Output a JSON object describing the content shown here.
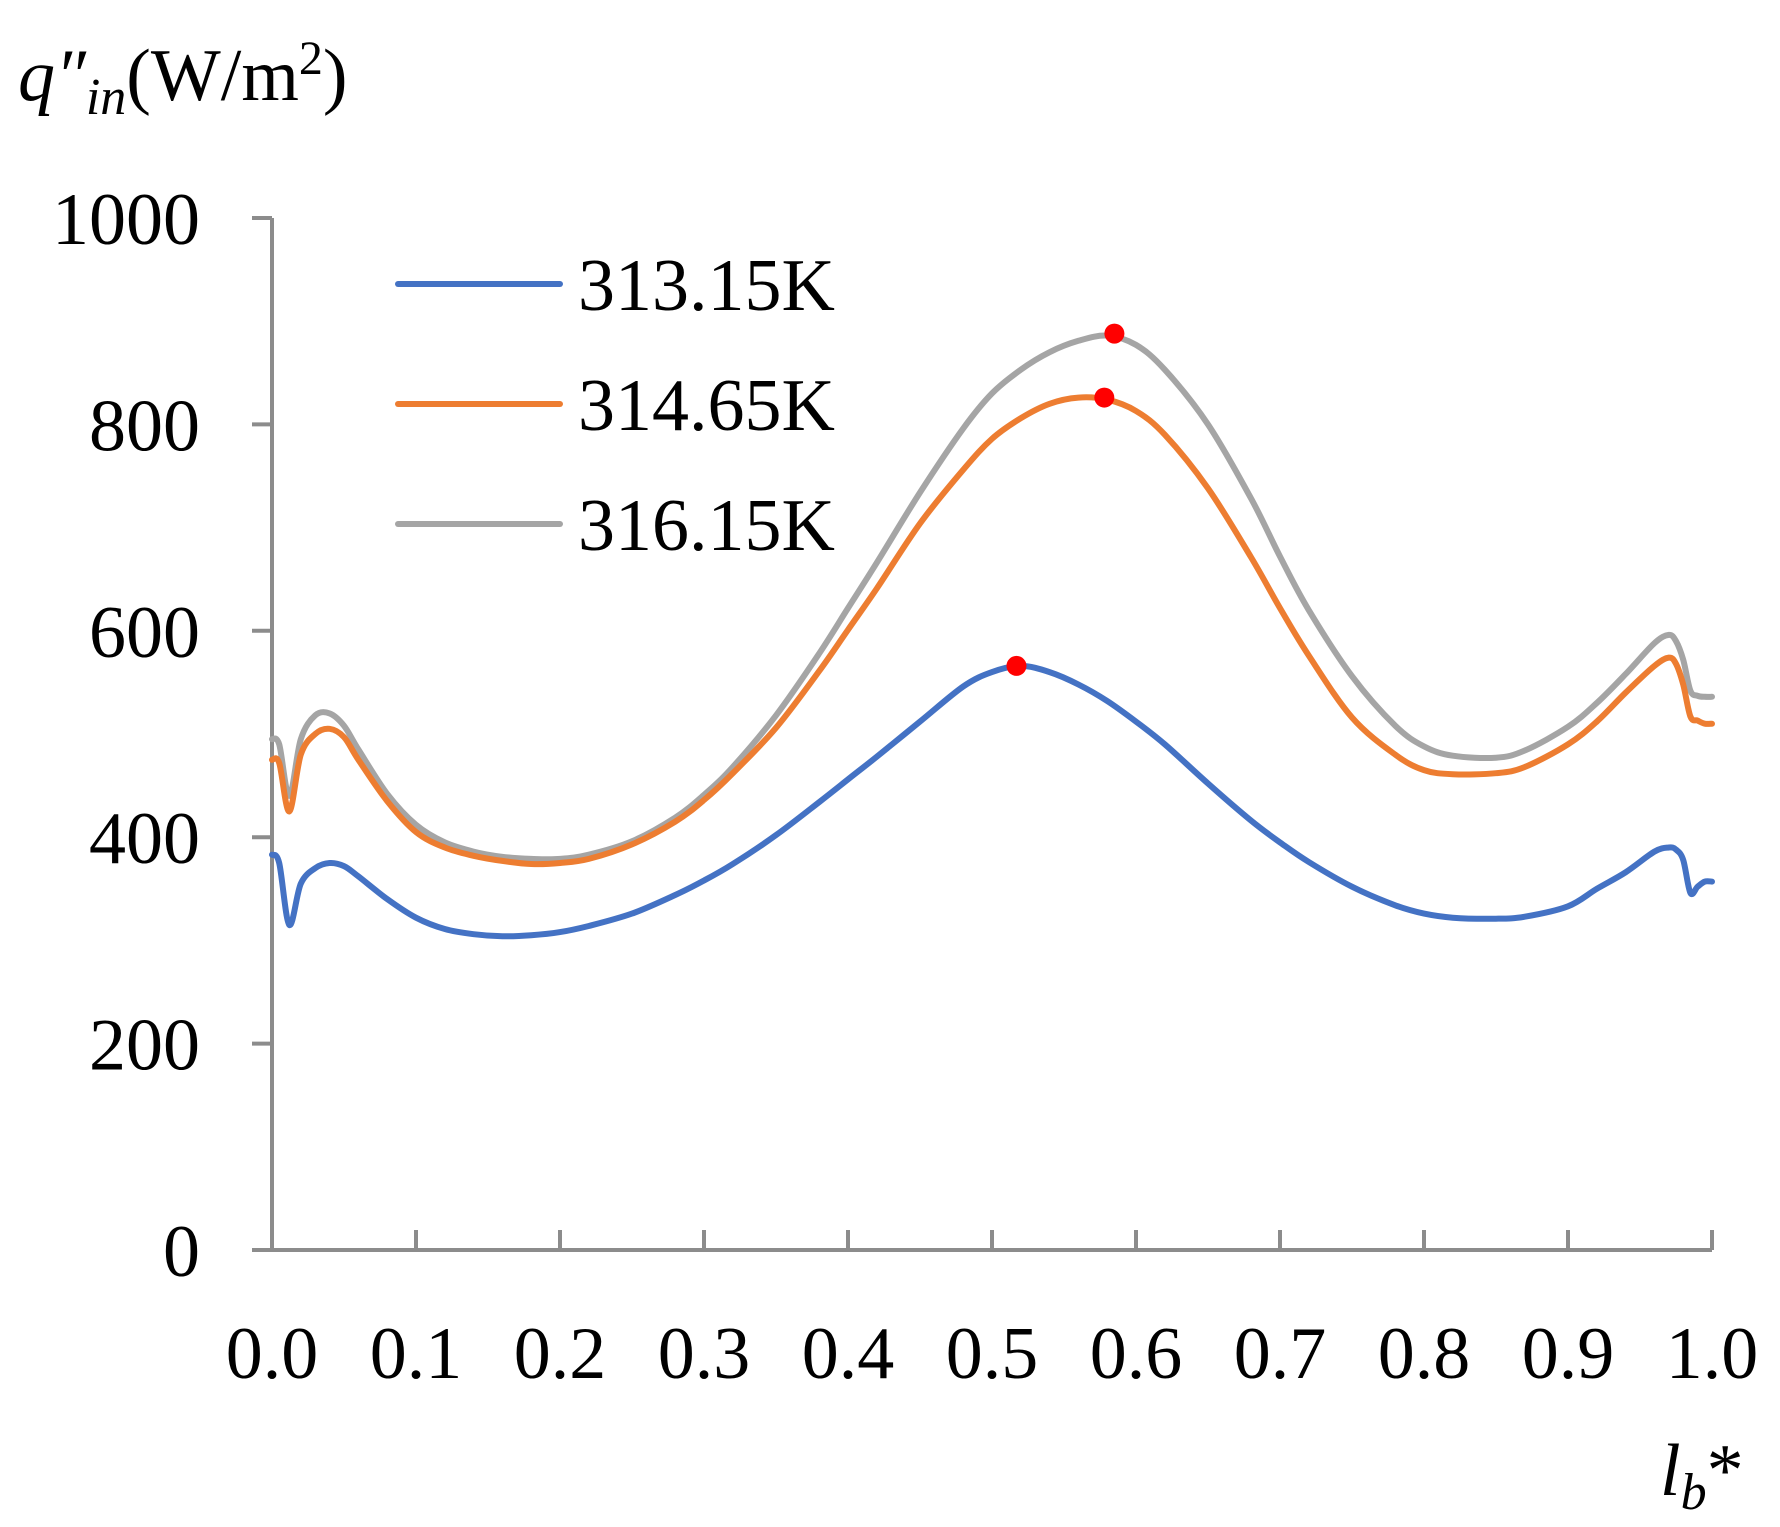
{
  "chart_data": {
    "type": "line",
    "title": "",
    "ylabel": {
      "symbol": "q",
      "prime": "″",
      "subscript": "in",
      "unit_open": "(W/m",
      "unit_sup": "2",
      "unit_close": ")"
    },
    "xlabel": {
      "symbol": "l",
      "subscript": "b",
      "suffix": "*"
    },
    "xlim": [
      0.0,
      1.0
    ],
    "ylim": [
      0,
      1000
    ],
    "xticks": [
      "0.0",
      "0.1",
      "0.2",
      "0.3",
      "0.4",
      "0.5",
      "0.6",
      "0.7",
      "0.8",
      "0.9",
      "1.0"
    ],
    "yticks": [
      "0",
      "200",
      "400",
      "600",
      "800",
      "1000"
    ],
    "legend_position": "top-left",
    "series": [
      {
        "name": "313.15K",
        "color": "#4472C4",
        "x": [
          0.0,
          0.005,
          0.012,
          0.02,
          0.03,
          0.04,
          0.05,
          0.06,
          0.08,
          0.1,
          0.12,
          0.14,
          0.16,
          0.18,
          0.2,
          0.22,
          0.25,
          0.28,
          0.3,
          0.32,
          0.35,
          0.38,
          0.4,
          0.42,
          0.45,
          0.48,
          0.5,
          0.52,
          0.54,
          0.56,
          0.58,
          0.6,
          0.62,
          0.65,
          0.68,
          0.7,
          0.72,
          0.75,
          0.78,
          0.8,
          0.82,
          0.85,
          0.87,
          0.9,
          0.92,
          0.94,
          0.96,
          0.97,
          0.975,
          0.98,
          0.985,
          0.99,
          0.995,
          1.0
        ],
        "values": [
          383,
          375,
          315,
          355,
          370,
          375,
          372,
          362,
          340,
          322,
          311,
          306,
          304,
          305,
          308,
          314,
          326,
          344,
          358,
          374,
          402,
          434,
          456,
          478,
          512,
          546,
          560,
          566,
          560,
          548,
          532,
          512,
          490,
          452,
          416,
          395,
          376,
          352,
          334,
          326,
          322,
          321,
          323,
          333,
          350,
          366,
          386,
          390,
          388,
          378,
          346,
          352,
          357,
          357
        ]
      },
      {
        "name": "314.65K",
        "color": "#ED7D31",
        "x": [
          0.0,
          0.005,
          0.012,
          0.02,
          0.03,
          0.04,
          0.05,
          0.06,
          0.08,
          0.1,
          0.12,
          0.14,
          0.16,
          0.18,
          0.2,
          0.22,
          0.25,
          0.28,
          0.3,
          0.32,
          0.35,
          0.38,
          0.4,
          0.42,
          0.45,
          0.48,
          0.5,
          0.52,
          0.54,
          0.56,
          0.58,
          0.6,
          0.62,
          0.65,
          0.68,
          0.7,
          0.72,
          0.75,
          0.78,
          0.8,
          0.82,
          0.85,
          0.87,
          0.9,
          0.92,
          0.94,
          0.96,
          0.97,
          0.975,
          0.98,
          0.985,
          0.99,
          0.995,
          1.0
        ],
        "values": [
          475,
          472,
          425,
          480,
          500,
          505,
          497,
          475,
          435,
          405,
          390,
          382,
          377,
          374,
          375,
          379,
          393,
          415,
          436,
          462,
          506,
          561,
          601,
          641,
          704,
          756,
          786,
          806,
          820,
          826,
          824,
          813,
          790,
          738,
          671,
          622,
          576,
          516,
          480,
          465,
          461,
          462,
          468,
          490,
          512,
          540,
          566,
          574,
          568,
          548,
          517,
          513,
          510,
          510
        ]
      },
      {
        "name": "316.15K",
        "color": "#A5A5A5",
        "x": [
          0.0,
          0.005,
          0.012,
          0.02,
          0.03,
          0.04,
          0.05,
          0.06,
          0.08,
          0.1,
          0.12,
          0.14,
          0.16,
          0.18,
          0.2,
          0.22,
          0.25,
          0.28,
          0.3,
          0.32,
          0.35,
          0.38,
          0.4,
          0.42,
          0.45,
          0.48,
          0.5,
          0.52,
          0.54,
          0.56,
          0.58,
          0.6,
          0.62,
          0.65,
          0.68,
          0.7,
          0.72,
          0.75,
          0.78,
          0.8,
          0.82,
          0.85,
          0.87,
          0.9,
          0.92,
          0.94,
          0.96,
          0.97,
          0.975,
          0.98,
          0.985,
          0.99,
          0.995,
          1.0
        ],
        "values": [
          495,
          490,
          440,
          495,
          518,
          520,
          508,
          485,
          442,
          412,
          395,
          386,
          381,
          379,
          379,
          383,
          396,
          419,
          441,
          468,
          518,
          578,
          622,
          666,
          734,
          796,
          830,
          853,
          870,
          881,
          886,
          877,
          853,
          800,
          728,
          672,
          620,
          556,
          508,
          488,
          479,
          477,
          484,
          507,
          530,
          558,
          588,
          596,
          590,
          572,
          542,
          537,
          536,
          536
        ]
      }
    ],
    "annotations": [
      {
        "type": "peak-marker",
        "series": "313.15K",
        "x": 0.517,
        "y": 566,
        "color": "#FF0000"
      },
      {
        "type": "peak-marker",
        "series": "314.65K",
        "x": 0.578,
        "y": 826,
        "color": "#FF0000"
      },
      {
        "type": "peak-marker",
        "series": "316.15K",
        "x": 0.585,
        "y": 888,
        "color": "#FF0000"
      }
    ],
    "colors": {
      "axis": "#8C8C8C",
      "marker": "#FF0000"
    }
  }
}
